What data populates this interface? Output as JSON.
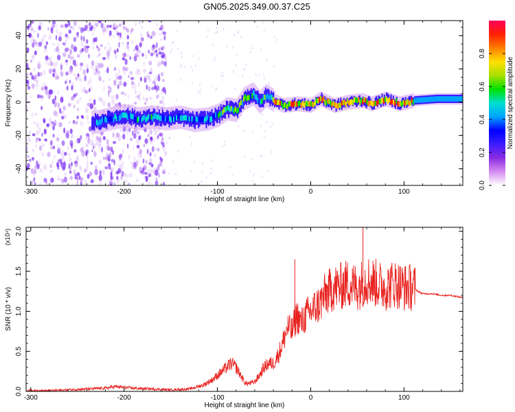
{
  "title": "GN05.2025.349.00.37.C25",
  "colors": {
    "axis": "#000000",
    "snr_line": "#e8231f",
    "spectrogram_low": "#7b2ff5",
    "colorbar_stops": [
      "#ffffff",
      "#d68cf2",
      "#8a2be2",
      "#3c1cff",
      "#0000ff",
      "#00a5ff",
      "#00e0d0",
      "#00e000",
      "#a8e000",
      "#ffe000",
      "#ff8000",
      "#ff2000",
      "#ff005a"
    ]
  },
  "chart_data": [
    {
      "id": "spectrogram",
      "type": "heatmap",
      "xlabel": "Height of straight line (km)",
      "ylabel": "Frequency (Hz)",
      "xlim": [
        -305,
        163
      ],
      "ylim": [
        -50,
        49
      ],
      "x_ticks": [
        -300,
        -200,
        -100,
        0,
        100
      ],
      "x_tick_labels": [
        "-300",
        "-200",
        "-100",
        "0",
        "100"
      ],
      "y_ticks": [
        -40,
        -20,
        0,
        20,
        40
      ],
      "y_tick_labels": [
        "-40",
        "-20",
        "0",
        "20",
        "40"
      ],
      "colorbar": {
        "label": "Normalized spectral amplitude",
        "range": [
          0,
          1
        ],
        "ticks": [
          0.0,
          0.2,
          0.4,
          0.6,
          0.8
        ],
        "tick_labels": [
          "0.0",
          "0.2",
          "0.4",
          "0.6",
          "0.8"
        ]
      },
      "ridge": [
        {
          "x": -230,
          "y": -12
        },
        {
          "x": -215,
          "y": -10
        },
        {
          "x": -200,
          "y": -8
        },
        {
          "x": -185,
          "y": -10
        },
        {
          "x": -170,
          "y": -9
        },
        {
          "x": -155,
          "y": -10
        },
        {
          "x": -140,
          "y": -9
        },
        {
          "x": -125,
          "y": -11
        },
        {
          "x": -110,
          "y": -10
        },
        {
          "x": -100,
          "y": -8
        },
        {
          "x": -90,
          "y": -4
        },
        {
          "x": -80,
          "y": -5
        },
        {
          "x": -72,
          "y": 2
        },
        {
          "x": -62,
          "y": 5
        },
        {
          "x": -55,
          "y": 0
        },
        {
          "x": -48,
          "y": 4
        },
        {
          "x": -40,
          "y": 1
        },
        {
          "x": -30,
          "y": -2
        },
        {
          "x": -15,
          "y": -1
        },
        {
          "x": 0,
          "y": -2
        },
        {
          "x": 10,
          "y": 2
        },
        {
          "x": 25,
          "y": -2
        },
        {
          "x": 40,
          "y": 0
        },
        {
          "x": 55,
          "y": 1
        },
        {
          "x": 65,
          "y": -1
        },
        {
          "x": 80,
          "y": 2
        },
        {
          "x": 95,
          "y": -1
        },
        {
          "x": 110,
          "y": 1
        },
        {
          "x": 135,
          "y": 2
        },
        {
          "x": 163,
          "y": 2
        }
      ]
    },
    {
      "id": "snr",
      "type": "line",
      "xlabel": "Height of straight line (km)",
      "ylabel": "SNR (10 * v/v)",
      "y_exponent_label": "(x10⁴)",
      "xlim": [
        -305,
        163
      ],
      "ylim": [
        0,
        2.05
      ],
      "x_ticks": [
        -300,
        -200,
        -100,
        0,
        100
      ],
      "x_tick_labels": [
        "-300",
        "-200",
        "-100",
        "0",
        "100"
      ],
      "y_ticks": [
        0.0,
        0.5,
        1.0,
        1.5,
        2.0
      ],
      "y_tick_labels": [
        "0.0",
        "0.5",
        "1.0",
        "1.5",
        "2.0"
      ],
      "series": [
        {
          "x": [
            -305,
            -280,
            -260,
            -240,
            -220,
            -210,
            -200,
            -190,
            -170,
            -150,
            -130,
            -115,
            -105,
            -95,
            -90,
            -85,
            -80,
            -75,
            -70,
            -65,
            -60,
            -55,
            -50,
            -45,
            -40,
            -35,
            -30,
            -25,
            -20,
            -15,
            -10,
            -5,
            0,
            5,
            10,
            15,
            20,
            25,
            30,
            40,
            50,
            60,
            70,
            80,
            90,
            100,
            110,
            115,
            120,
            130,
            140,
            150,
            163
          ],
          "y": [
            0.01,
            0.01,
            0.02,
            0.03,
            0.04,
            0.06,
            0.05,
            0.04,
            0.03,
            0.02,
            0.03,
            0.08,
            0.15,
            0.25,
            0.3,
            0.35,
            0.3,
            0.2,
            0.1,
            0.1,
            0.12,
            0.2,
            0.3,
            0.35,
            0.35,
            0.45,
            0.6,
            0.8,
            0.75,
            0.95,
            0.85,
            0.95,
            1.0,
            1.05,
            1.1,
            1.2,
            1.25,
            1.3,
            1.3,
            1.35,
            1.3,
            1.4,
            1.35,
            1.3,
            1.35,
            1.3,
            1.3,
            1.25,
            1.22,
            1.22,
            1.2,
            1.2,
            1.17
          ]
        }
      ],
      "spikes": [
        {
          "x": -17,
          "y": 1.65
        },
        {
          "x": 56,
          "y": 2.05
        },
        {
          "x": 38,
          "y": 1.55
        },
        {
          "x": 101,
          "y": 1.55
        }
      ]
    }
  ]
}
